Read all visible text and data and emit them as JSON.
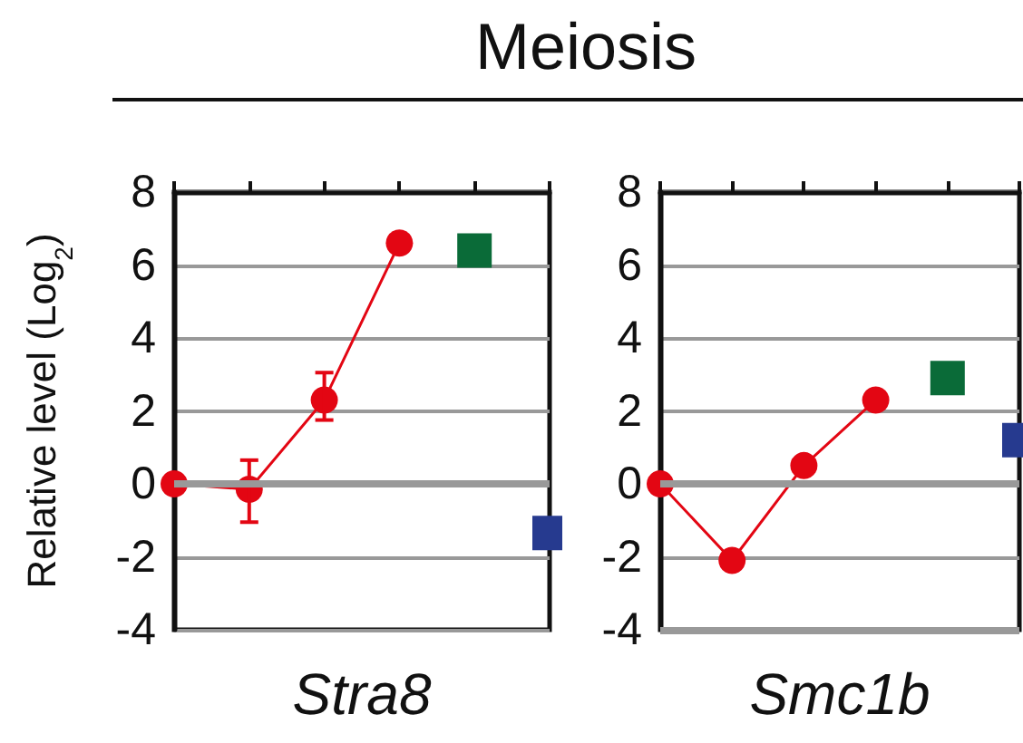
{
  "chart_data": [
    {
      "type": "line",
      "title": "Meiosis",
      "xlabel": "Stra8",
      "ylabel": "Relative level (Log$_{2}$)",
      "categories": [
        null,
        null,
        null,
        null,
        null,
        null
      ],
      "ylim": [
        -4,
        8
      ],
      "yticks": [
        -4,
        -2,
        0,
        2,
        4,
        6,
        8
      ],
      "grid": "y",
      "ref_lines": [
        {
          "axis": "y",
          "value": 0,
          "label": null,
          "color": "#999999"
        }
      ],
      "series": [
        {
          "type": "line",
          "color": "#e30613",
          "marker": "circle",
          "values": [
            0,
            -0.15,
            2.3,
            6.6,
            null,
            null
          ],
          "errors": [
            null,
            [
              -1.05,
              0.65
            ],
            [
              1.75,
              3.05
            ],
            null,
            null,
            null
          ]
        },
        {
          "type": "scatter",
          "color": "#0a6b38",
          "marker": "square",
          "values": [
            null,
            null,
            null,
            null,
            6.4,
            null
          ]
        },
        {
          "type": "scatter",
          "color": "#263a8f",
          "marker": "square",
          "values": [
            null,
            null,
            null,
            null,
            null,
            -1.35
          ]
        }
      ]
    },
    {
      "type": "line",
      "xlabel": "Smc1b",
      "categories": [
        null,
        null,
        null,
        null,
        null,
        null
      ],
      "ylim": [
        -4,
        8
      ],
      "yticks": [
        -4,
        -2,
        0,
        2,
        4,
        6,
        8
      ],
      "grid": "y",
      "ref_lines": [
        {
          "axis": "y",
          "value": 0,
          "label": null,
          "color": "#999999"
        },
        {
          "axis": "y",
          "value": -4,
          "label": null,
          "color": "#999999"
        }
      ],
      "series": [
        {
          "type": "line",
          "color": "#e30613",
          "marker": "circle",
          "values": [
            0,
            -2.1,
            0.5,
            2.3,
            null,
            null
          ]
        },
        {
          "type": "scatter",
          "color": "#0a6b38",
          "marker": "square",
          "values": [
            null,
            null,
            null,
            null,
            2.9,
            null
          ]
        },
        {
          "type": "scatter",
          "color": "#263a8f",
          "marker": "square",
          "values": [
            null,
            null,
            null,
            null,
            null,
            1.2
          ]
        }
      ]
    }
  ]
}
